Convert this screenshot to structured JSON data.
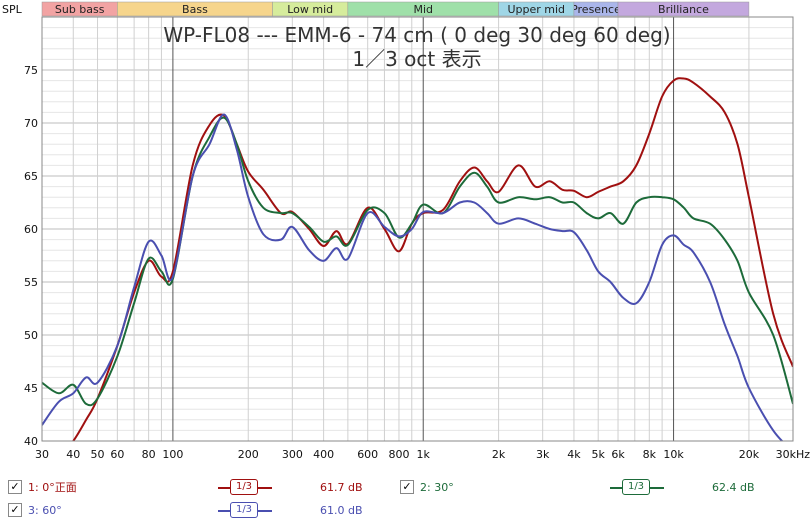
{
  "chart_data": {
    "type": "line",
    "title": "WP-FL08 --- EMM-6 - 74 cm ( 0 deg 30 deg 60 deg)",
    "subtitle": "1／3 oct 表示",
    "ylabel": "SPL",
    "ylim": [
      40,
      80
    ],
    "xlim": [
      30,
      30000
    ],
    "x_scale": "log",
    "grid": true,
    "y_ticks": [
      40,
      45,
      50,
      55,
      60,
      65,
      70,
      75
    ],
    "x_ticks": [
      {
        "v": 30,
        "label": "30"
      },
      {
        "v": 40,
        "label": "40"
      },
      {
        "v": 50,
        "label": "50"
      },
      {
        "v": 60,
        "label": "60"
      },
      {
        "v": 80,
        "label": "80"
      },
      {
        "v": 100,
        "label": "100"
      },
      {
        "v": 200,
        "label": "200"
      },
      {
        "v": 300,
        "label": "300"
      },
      {
        "v": 400,
        "label": "400"
      },
      {
        "v": 600,
        "label": "600"
      },
      {
        "v": 800,
        "label": "800"
      },
      {
        "v": 1000,
        "label": "1k"
      },
      {
        "v": 2000,
        "label": "2k"
      },
      {
        "v": 3000,
        "label": "3k"
      },
      {
        "v": 4000,
        "label": "4k"
      },
      {
        "v": 5000,
        "label": "5k"
      },
      {
        "v": 6000,
        "label": "6k"
      },
      {
        "v": 8000,
        "label": "8k"
      },
      {
        "v": 10000,
        "label": "10k"
      },
      {
        "v": 20000,
        "label": "20k"
      },
      {
        "v": 30000,
        "label": "30kHz"
      }
    ],
    "bands": [
      {
        "name": "Sub bass",
        "from": 20,
        "to": 60,
        "color": "#f2a3a3"
      },
      {
        "name": "Bass",
        "from": 60,
        "to": 250,
        "color": "#f6d58c"
      },
      {
        "name": "Low mid",
        "from": 250,
        "to": 500,
        "color": "#d6ec9c"
      },
      {
        "name": "Mid",
        "from": 500,
        "to": 2000,
        "color": "#9fe0a9"
      },
      {
        "name": "Upper mid",
        "from": 2000,
        "to": 4000,
        "color": "#9fd6e6"
      },
      {
        "name": "Presence",
        "from": 4000,
        "to": 6000,
        "color": "#aab6ea"
      },
      {
        "name": "Brilliance",
        "from": 6000,
        "to": 20000,
        "color": "#c3a8de"
      }
    ],
    "series": [
      {
        "name": "1: 0°正面",
        "color": "#a01010",
        "x": [
          30,
          35,
          40,
          45,
          50,
          60,
          70,
          80,
          90,
          100,
          120,
          140,
          160,
          180,
          200,
          230,
          270,
          300,
          350,
          400,
          450,
          500,
          600,
          700,
          800,
          900,
          1000,
          1200,
          1400,
          1600,
          1800,
          2000,
          2400,
          2800,
          3200,
          3600,
          4000,
          4500,
          5000,
          5600,
          6300,
          7100,
          8000,
          9000,
          10000,
          11000,
          12000,
          14000,
          16000,
          18000,
          20000,
          25000,
          30000
        ],
        "y": [
          37,
          38.5,
          40,
          42,
          44,
          49,
          54,
          57,
          55.5,
          56,
          66,
          69.8,
          70.7,
          68,
          65.4,
          63.7,
          61.5,
          61.6,
          60,
          58.4,
          59.8,
          58.6,
          62,
          60,
          57.9,
          60.5,
          61.5,
          61.8,
          64.5,
          65.8,
          64.5,
          63.5,
          66,
          64,
          64.5,
          63.7,
          63.6,
          63,
          63.5,
          64,
          64.5,
          66,
          69,
          72.5,
          74,
          74.2,
          73.8,
          72.5,
          71,
          68,
          63,
          52,
          47
        ]
      },
      {
        "name": "2: 30°",
        "color": "#1d6b3a",
        "x": [
          30,
          35,
          40,
          45,
          50,
          60,
          70,
          80,
          90,
          100,
          120,
          140,
          160,
          180,
          200,
          230,
          270,
          300,
          350,
          400,
          450,
          500,
          600,
          700,
          800,
          900,
          1000,
          1200,
          1400,
          1600,
          1800,
          2000,
          2400,
          2800,
          3200,
          3600,
          4000,
          4500,
          5000,
          5600,
          6300,
          7100,
          8000,
          9000,
          10000,
          11000,
          12000,
          14000,
          16000,
          18000,
          20000,
          25000,
          30000
        ],
        "y": [
          45.5,
          44.5,
          45.3,
          43.5,
          44,
          48,
          53,
          57.2,
          56,
          55.3,
          65,
          68.7,
          70.5,
          68,
          64.5,
          62,
          61.5,
          61.5,
          60.2,
          58.8,
          59.3,
          58.5,
          61.8,
          61.5,
          59.2,
          60.5,
          62.3,
          61.5,
          64,
          65.3,
          64,
          62.5,
          63,
          62.8,
          63,
          62.5,
          62.5,
          61.5,
          61,
          61.5,
          60.5,
          62.5,
          63,
          63,
          62.8,
          62,
          61,
          60.5,
          59,
          57,
          54,
          50,
          43.5
        ]
      },
      {
        "name": "3: 60°",
        "color": "#4a4fb0",
        "x": [
          30,
          35,
          40,
          45,
          50,
          60,
          70,
          80,
          90,
          100,
          120,
          140,
          160,
          180,
          200,
          230,
          270,
          300,
          350,
          400,
          450,
          500,
          600,
          700,
          800,
          900,
          1000,
          1200,
          1400,
          1600,
          1800,
          2000,
          2400,
          2800,
          3200,
          3600,
          4000,
          4500,
          5000,
          5600,
          6300,
          7100,
          8000,
          9000,
          10000,
          11000,
          12000,
          14000,
          16000,
          18000,
          20000,
          25000,
          30000
        ],
        "y": [
          41.5,
          43.7,
          44.5,
          46,
          45.5,
          49,
          54.5,
          58.8,
          57.5,
          55.5,
          65,
          68,
          70.8,
          67.5,
          63,
          59.5,
          59,
          60.2,
          58,
          57,
          58.2,
          57.2,
          61.5,
          60.2,
          59.3,
          60,
          61.6,
          61.5,
          62.5,
          62.5,
          61.5,
          60.5,
          61,
          60.5,
          60,
          59.8,
          59.7,
          58,
          56,
          55,
          53.5,
          53,
          55,
          58.5,
          59.4,
          58.5,
          57.8,
          55,
          51,
          48,
          45,
          41,
          39
        ]
      }
    ]
  },
  "legend": [
    {
      "label": "1: 0°正面",
      "checked": "✓",
      "smoothing": "1/3",
      "value": "61.7 dB",
      "color": "#a01010"
    },
    {
      "label": "2: 30°",
      "checked": "✓",
      "smoothing": "1/3",
      "value": "62.4 dB",
      "color": "#1d6b3a"
    },
    {
      "label": "3: 60°",
      "checked": "✓",
      "smoothing": "1/3",
      "value": "61.0 dB",
      "color": "#4a4fb0"
    }
  ]
}
